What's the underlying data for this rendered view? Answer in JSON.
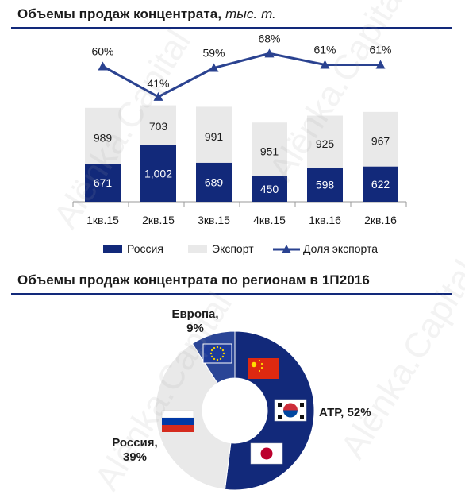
{
  "titles": {
    "bar_title": "Объемы продаж концентрата,",
    "bar_unit": "тыс. т.",
    "pie_title": "Объемы продаж концентрата по регионам в 1П2016"
  },
  "watermark": "Alёnka.Capital",
  "chart_data": [
    {
      "type": "bar",
      "stacked": true,
      "categories": [
        "1кв.15",
        "2кв.15",
        "3кв.15",
        "4кв.15",
        "1кв.16",
        "2кв.16"
      ],
      "series": [
        {
          "name": "Россия",
          "values": [
            671,
            1002,
            689,
            450,
            598,
            622
          ],
          "value_labels": [
            "671",
            "1,002",
            "689",
            "450",
            "598",
            "622"
          ],
          "color": "#12297a"
        },
        {
          "name": "Экспорт",
          "values": [
            989,
            703,
            991,
            951,
            925,
            967
          ],
          "value_labels": [
            "989",
            "703",
            "991",
            "951",
            "925",
            "967"
          ],
          "color": "#e9e9e9"
        }
      ],
      "line": {
        "name": "Доля экспорта",
        "values": [
          60,
          41,
          59,
          68,
          61,
          61
        ],
        "value_labels": [
          "60%",
          "41%",
          "59%",
          "68%",
          "61%",
          "61%"
        ],
        "color": "#2a4290"
      },
      "legend": "bottom"
    },
    {
      "type": "pie",
      "donut": true,
      "slices": [
        {
          "name": "АТР",
          "label": "АТР, 52%",
          "value": 52,
          "color": "#12297a"
        },
        {
          "name": "Россия",
          "label_line1": "Россия,",
          "label_line2": "39%",
          "value": 39,
          "color": "#e9e9e9"
        },
        {
          "name": "Европа",
          "label_line1": "Европа,",
          "label_line2": "9%",
          "value": 9,
          "color": "#2a4596"
        }
      ],
      "flags": [
        "eu-flag",
        "china-flag",
        "korea-flag",
        "japan-flag",
        "russia-flag"
      ]
    }
  ]
}
